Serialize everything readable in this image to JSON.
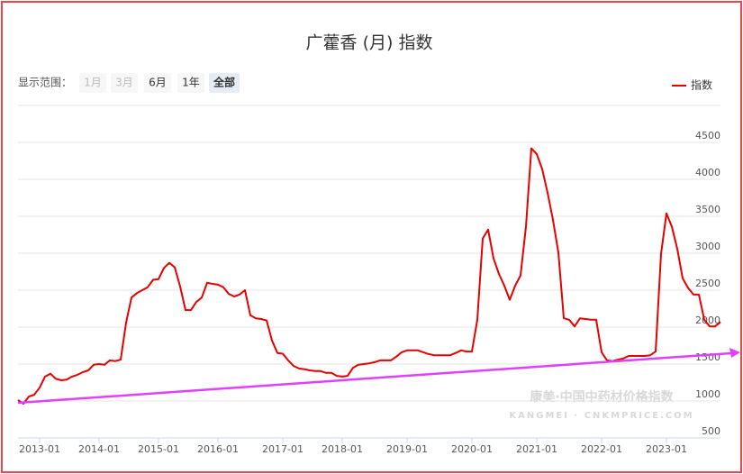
{
  "chart_data": {
    "type": "line",
    "title": "广藿香 (月) 指数",
    "range_label": "显示范围：",
    "range_buttons": [
      "1月",
      "3月",
      "6月",
      "1年",
      "全部"
    ],
    "categories": [
      null,
      null,
      null,
      null,
      "2013-01",
      null,
      null,
      null,
      null,
      null,
      null,
      null,
      null,
      null,
      null,
      "2014-01",
      null,
      null,
      null,
      null,
      null,
      null,
      null,
      null,
      null,
      null,
      "2015-01",
      null,
      null,
      null,
      null,
      null,
      null,
      null,
      null,
      null,
      null,
      "2016-01",
      null,
      null,
      null,
      null,
      null,
      null,
      null,
      null,
      null,
      null,
      null,
      "2017-01",
      null,
      null,
      null,
      null,
      null,
      null,
      null,
      null,
      null,
      null,
      "2018-01",
      null,
      null,
      null,
      null,
      null,
      null,
      null,
      null,
      null,
      null,
      null,
      "2019-01",
      null,
      null,
      null,
      null,
      null,
      null,
      null,
      null,
      null,
      null,
      null,
      "2020-01",
      null,
      null,
      null,
      null,
      null,
      null,
      null,
      null,
      null,
      null,
      null,
      "2021-01",
      null,
      null,
      null,
      null,
      null,
      null,
      null,
      null,
      null,
      null,
      null,
      "2022-01",
      null,
      null,
      null,
      null,
      null,
      null,
      null,
      null,
      null,
      null,
      null,
      "2023-01",
      null,
      null,
      null,
      null,
      null,
      null,
      null,
      null,
      null,
      null
    ],
    "series": [
      {
        "name": "指数",
        "color": "#e60000",
        "values": [
          1012,
          963,
          1060,
          1085,
          1180,
          1330,
          1370,
          1300,
          1280,
          1290,
          1330,
          1355,
          1390,
          1415,
          1490,
          1500,
          1490,
          1550,
          1540,
          1560,
          2060,
          2400,
          2460,
          2500,
          2540,
          2640,
          2650,
          2800,
          2870,
          2810,
          2550,
          2230,
          2230,
          2340,
          2400,
          2600,
          2585,
          2575,
          2540,
          2450,
          2415,
          2440,
          2500,
          2160,
          2120,
          2110,
          2090,
          1820,
          1650,
          1640,
          1550,
          1475,
          1440,
          1430,
          1415,
          1405,
          1405,
          1380,
          1380,
          1340,
          1330,
          1340,
          1450,
          1490,
          1500,
          1510,
          1525,
          1550,
          1550,
          1550,
          1600,
          1660,
          1685,
          1685,
          1685,
          1660,
          1635,
          1620,
          1620,
          1620,
          1620,
          1650,
          1685,
          1670,
          1670,
          2100,
          3200,
          3320,
          2930,
          2720,
          2560,
          2370,
          2560,
          2700,
          3360,
          4420,
          4340,
          4140,
          3820,
          3450,
          3010,
          2120,
          2100,
          2010,
          2120,
          2110,
          2100,
          2100,
          1660,
          1550,
          1540,
          1560,
          1575,
          1610,
          1610,
          1610,
          1610,
          1620,
          1670,
          2990,
          3540,
          3360,
          3060,
          2660,
          2530,
          2440,
          2440,
          2100,
          2010,
          2010,
          2070
        ]
      }
    ],
    "ylim": [
      500,
      5000
    ],
    "yticks": [
      500,
      1000,
      1500,
      2000,
      2500,
      3000,
      3500,
      4000,
      4500
    ],
    "watermark": [
      "康美·中国中药材价格指数",
      "KANGMEI · CNKMPRICE.COM"
    ]
  }
}
